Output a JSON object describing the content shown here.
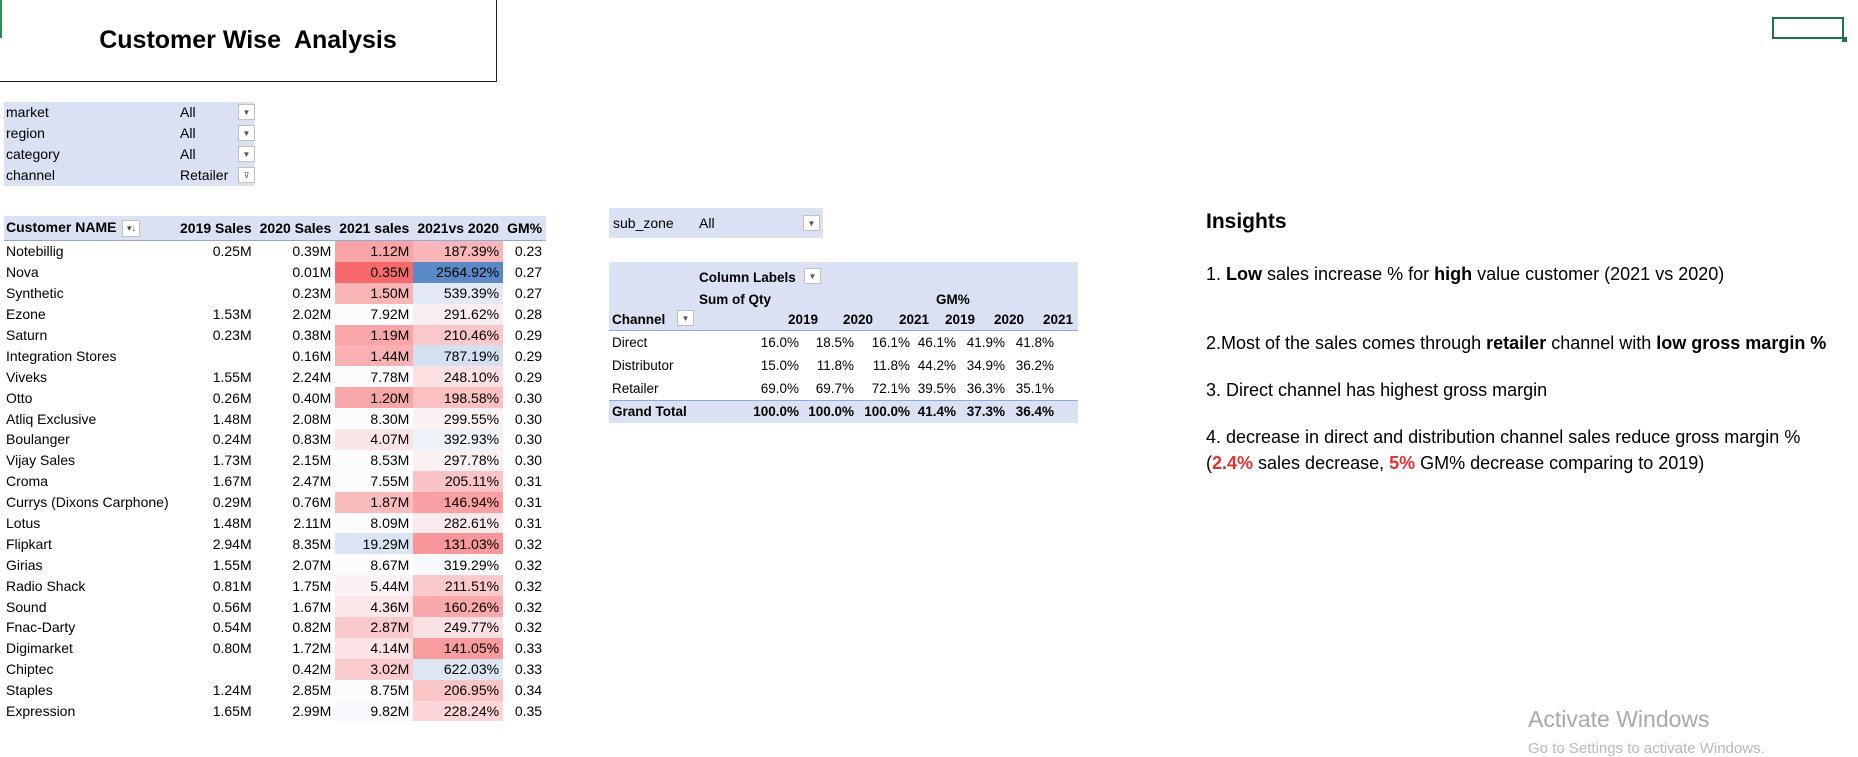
{
  "title": "Customer Wise  Analysis",
  "filters": [
    {
      "name": "market",
      "value": "All",
      "icon": "chevron-down-icon"
    },
    {
      "name": "region",
      "value": "All",
      "icon": "chevron-down-icon"
    },
    {
      "name": "category",
      "value": "All",
      "icon": "chevron-down-icon"
    },
    {
      "name": "channel",
      "value": "Retailer",
      "icon": "filter-icon"
    }
  ],
  "table": {
    "headers": [
      "Customer NAME",
      "2019 Sales",
      "2020 Sales",
      "2021 sales",
      "2021vs 2020",
      "GM%"
    ],
    "rows": [
      {
        "name": "Notebillig",
        "s2019": "0.25M",
        "s2020": "0.39M",
        "s2021": "1.12M",
        "vs": "187.39%",
        "gm": "0.23",
        "c21": "#f8a3a5",
        "cvs": "#f9b6b8"
      },
      {
        "name": "Nova",
        "s2019": "",
        "s2020": "0.01M",
        "s2021": "0.35M",
        "vs": "2564.92%",
        "gm": "0.27",
        "c21": "#f8696b",
        "cvs": "#5a8ac6"
      },
      {
        "name": "Synthetic",
        "s2019": "",
        "s2020": "0.23M",
        "s2021": "1.50M",
        "vs": "539.39%",
        "gm": "0.27",
        "c21": "#f9b4b6",
        "cvs": "#e2e9f5"
      },
      {
        "name": "Ezone",
        "s2019": "1.53M",
        "s2020": "2.02M",
        "s2021": "7.92M",
        "vs": "291.62%",
        "gm": "0.28",
        "c21": "#fcfcff",
        "cvs": "#fbeef0"
      },
      {
        "name": "Saturn",
        "s2019": "0.23M",
        "s2020": "0.38M",
        "s2021": "1.19M",
        "vs": "210.46%",
        "gm": "0.29",
        "c21": "#f8a6a8",
        "cvs": "#fac8ca"
      },
      {
        "name": "Integration Stores",
        "s2019": "",
        "s2020": "0.16M",
        "s2021": "1.44M",
        "vs": "787.19%",
        "gm": "0.29",
        "c21": "#f9b1b3",
        "cvs": "#d4dff0"
      },
      {
        "name": "Viveks",
        "s2019": "1.55M",
        "s2020": "2.24M",
        "s2021": "7.78M",
        "vs": "248.10%",
        "gm": "0.29",
        "c21": "#fcfcff",
        "cvs": "#fbe0e2"
      },
      {
        "name": "Otto",
        "s2019": "0.26M",
        "s2020": "0.40M",
        "s2021": "1.20M",
        "vs": "198.58%",
        "gm": "0.30",
        "c21": "#f8a7a9",
        "cvs": "#fac0c2"
      },
      {
        "name": "Atliq Exclusive",
        "s2019": "1.48M",
        "s2020": "2.08M",
        "s2021": "8.30M",
        "vs": "299.55%",
        "gm": "0.30",
        "c21": "#fcfcff",
        "cvs": "#fcf2f3"
      },
      {
        "name": "Boulanger",
        "s2019": "0.24M",
        "s2020": "0.83M",
        "s2021": "4.07M",
        "vs": "392.93%",
        "gm": "0.30",
        "c21": "#fbe4e6",
        "cvs": "#eef2f9"
      },
      {
        "name": "Vijay Sales",
        "s2019": "1.73M",
        "s2020": "2.15M",
        "s2021": "8.53M",
        "vs": "297.78%",
        "gm": "0.30",
        "c21": "#fcfcff",
        "cvs": "#fcf1f2"
      },
      {
        "name": "Croma",
        "s2019": "1.67M",
        "s2020": "2.47M",
        "s2021": "7.55M",
        "vs": "205.11%",
        "gm": "0.31",
        "c21": "#fcfcff",
        "cvs": "#fac4c6"
      },
      {
        "name": "Currys (Dixons Carphone)",
        "s2019": "0.29M",
        "s2020": "0.76M",
        "s2021": "1.87M",
        "vs": "146.94%",
        "gm": "0.31",
        "c21": "#f9bcbe",
        "cvs": "#f9a0a2"
      },
      {
        "name": "Lotus",
        "s2019": "1.48M",
        "s2020": "2.11M",
        "s2021": "8.09M",
        "vs": "282.61%",
        "gm": "0.31",
        "c21": "#fcfcff",
        "cvs": "#fbeaec"
      },
      {
        "name": "Flipkart",
        "s2019": "2.94M",
        "s2020": "8.35M",
        "s2021": "19.29M",
        "vs": "131.03%",
        "gm": "0.32",
        "c21": "#dbe4f2",
        "cvs": "#f8979a"
      },
      {
        "name": "Girias",
        "s2019": "1.55M",
        "s2020": "2.07M",
        "s2021": "8.67M",
        "vs": "319.29%",
        "gm": "0.32",
        "c21": "#fcfcff",
        "cvs": "#f8f9fd"
      },
      {
        "name": "Radio Shack",
        "s2019": "0.81M",
        "s2020": "1.75M",
        "s2021": "5.44M",
        "vs": "211.51%",
        "gm": "0.32",
        "c21": "#fcf1f3",
        "cvs": "#fac9cb"
      },
      {
        "name": "Sound",
        "s2019": "0.56M",
        "s2020": "1.67M",
        "s2021": "4.36M",
        "vs": "160.26%",
        "gm": "0.32",
        "c21": "#fbe6e8",
        "cvs": "#f9a9ab"
      },
      {
        "name": "Fnac-Darty",
        "s2019": "0.54M",
        "s2020": "0.82M",
        "s2021": "2.87M",
        "vs": "249.77%",
        "gm": "0.32",
        "c21": "#fac9cb",
        "cvs": "#fbe1e3"
      },
      {
        "name": "Digimarket",
        "s2019": "0.80M",
        "s2020": "1.72M",
        "s2021": "4.14M",
        "vs": "141.05%",
        "gm": "0.33",
        "c21": "#fbe3e5",
        "cvs": "#f89c9e"
      },
      {
        "name": "Chiptec",
        "s2019": "",
        "s2020": "0.42M",
        "s2021": "3.02M",
        "vs": "622.03%",
        "gm": "0.33",
        "c21": "#facbcd",
        "cvs": "#dde6f3"
      },
      {
        "name": "Staples",
        "s2019": "1.24M",
        "s2020": "2.85M",
        "s2021": "8.75M",
        "vs": "206.95%",
        "gm": "0.34",
        "c21": "#fcfcff",
        "cvs": "#fac5c7"
      },
      {
        "name": "Expression",
        "s2019": "1.65M",
        "s2020": "2.99M",
        "s2021": "9.82M",
        "vs": "228.24%",
        "gm": "0.35",
        "c21": "#f7f8fc",
        "cvs": "#fbd5d7"
      }
    ]
  },
  "subzone": {
    "label": "sub_zone",
    "value": "All"
  },
  "pivot": {
    "column_labels": "Column Labels",
    "sum_qty": "Sum of Qty",
    "gm_label": "GM%",
    "channel_label": "Channel",
    "years": [
      "2019",
      "2020",
      "2021",
      "2019",
      "2020",
      "2021"
    ],
    "rows": [
      {
        "channel": "Direct",
        "vals": [
          "16.0%",
          "18.5%",
          "16.1%",
          "46.1%",
          "41.9%",
          "41.8%"
        ]
      },
      {
        "channel": "Distributor",
        "vals": [
          "15.0%",
          "11.8%",
          "11.8%",
          "44.2%",
          "34.9%",
          "36.2%"
        ]
      },
      {
        "channel": "Retailer",
        "vals": [
          "69.0%",
          "69.7%",
          "72.1%",
          "39.5%",
          "36.3%",
          "35.1%"
        ]
      }
    ],
    "total": {
      "channel": "Grand Total",
      "vals": [
        "100.0%",
        "100.0%",
        "100.0%",
        "41.4%",
        "37.3%",
        "36.4%"
      ]
    }
  },
  "insights": {
    "title": "Insights",
    "i1": {
      "a": "1. ",
      "b": "Low",
      "c": " sales increase %  for ",
      "d": "high",
      "e": " value customer (2021 vs 2020)"
    },
    "i2": {
      "a": "2.Most of the sales comes through ",
      "b": "retailer",
      "c": " channel with ",
      "d": "low gross margin %"
    },
    "i3": "3. Direct channel has highest gross margin",
    "i4a": "4. decrease in direct and distribution channel sales reduce gross margin %",
    "i4b": {
      "a": "(",
      "b": "2.4%",
      "c": " sales decrease, ",
      "d": "5%",
      "e": " GM% decrease comparing to 2019)"
    }
  },
  "watermark": {
    "title": "Activate Windows",
    "sub": "Go to Settings to activate Windows."
  }
}
